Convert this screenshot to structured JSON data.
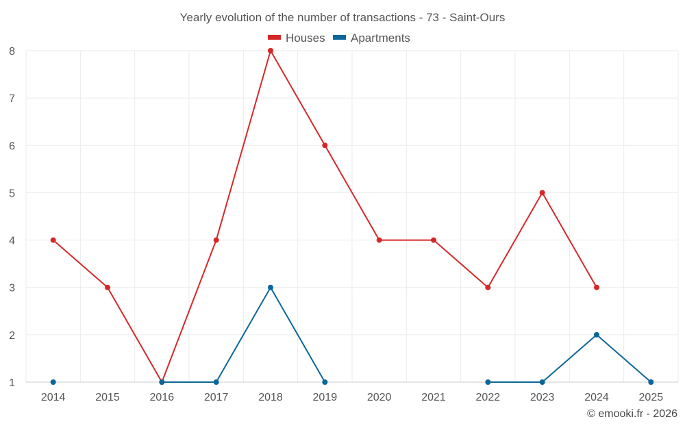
{
  "chart_data": {
    "type": "line",
    "title": "Yearly evolution of the number of transactions - 73 - Saint-Ours",
    "xlabel": "",
    "ylabel": "",
    "categories": [
      "2014",
      "2015",
      "2016",
      "2017",
      "2018",
      "2019",
      "2020",
      "2021",
      "2022",
      "2023",
      "2024",
      "2025"
    ],
    "ylim": [
      1,
      8
    ],
    "yticks": [
      "1",
      "2",
      "3",
      "4",
      "5",
      "6",
      "7",
      "8"
    ],
    "grid": true,
    "legend_position": "top-center",
    "series": [
      {
        "name": "Houses",
        "color": "#d62728",
        "values": [
          4,
          3,
          1,
          4,
          8,
          6,
          4,
          4,
          3,
          5,
          3,
          null
        ]
      },
      {
        "name": "Apartments",
        "color": "#0b6699",
        "values": [
          1,
          null,
          1,
          1,
          3,
          1,
          null,
          null,
          1,
          1,
          2,
          1
        ]
      }
    ]
  },
  "credit": "© emooki.fr - 2026"
}
